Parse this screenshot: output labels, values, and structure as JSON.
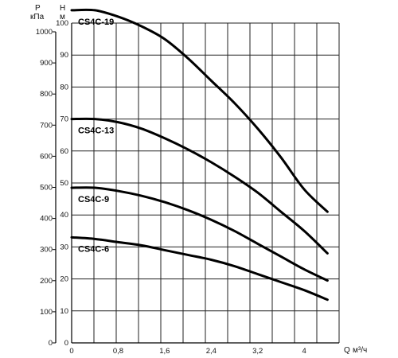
{
  "chart_data": {
    "type": "line",
    "title": "",
    "x_axis": {
      "label": "Q",
      "unit": "м³/ч",
      "ticks": [
        "0",
        "0,8",
        "1,6",
        "2,4",
        "3,2",
        "4"
      ],
      "range": [
        0,
        4.6
      ]
    },
    "y_axis_left": {
      "label": "P",
      "unit": "кПа",
      "ticks": [
        "0",
        "100",
        "200",
        "300",
        "400",
        "500",
        "600",
        "700",
        "800",
        "900",
        "1000"
      ],
      "range": [
        0,
        1000
      ]
    },
    "y_axis_right": {
      "label": "H",
      "unit": "м",
      "ticks": [
        "0",
        "10",
        "20",
        "30",
        "40",
        "50",
        "60",
        "70",
        "80",
        "90",
        "100"
      ],
      "range": [
        0,
        100
      ]
    },
    "grid": true,
    "series": [
      {
        "name": "CS4C-19",
        "x": [
          0,
          0.4,
          0.8,
          1.2,
          1.6,
          2.0,
          2.4,
          2.8,
          3.2,
          3.6,
          4.0,
          4.4
        ],
        "y": [
          104,
          104,
          102,
          99,
          95,
          89,
          82,
          75,
          67,
          58,
          48,
          41
        ]
      },
      {
        "name": "CS4C-13",
        "x": [
          0,
          0.4,
          0.8,
          1.2,
          1.6,
          2.0,
          2.4,
          2.8,
          3.2,
          3.6,
          4.0,
          4.4
        ],
        "y": [
          70,
          70,
          69,
          67,
          64,
          60.5,
          56.5,
          52,
          47,
          41,
          35,
          28
        ]
      },
      {
        "name": "CS4C-9",
        "x": [
          0,
          0.4,
          0.8,
          1.2,
          1.6,
          2.0,
          2.4,
          2.8,
          3.2,
          3.6,
          4.0,
          4.4
        ],
        "y": [
          48.5,
          48.5,
          47.5,
          46,
          44,
          41.5,
          38.5,
          35,
          31,
          27,
          23,
          19.5
        ]
      },
      {
        "name": "CS4C-6",
        "x": [
          0,
          0.4,
          0.8,
          1.2,
          1.6,
          2.0,
          2.4,
          2.8,
          3.2,
          3.6,
          4.0,
          4.4
        ],
        "y": [
          33,
          32.5,
          31.5,
          30.5,
          29,
          27.5,
          26,
          24,
          21.5,
          19,
          16.5,
          13.5
        ]
      }
    ]
  }
}
